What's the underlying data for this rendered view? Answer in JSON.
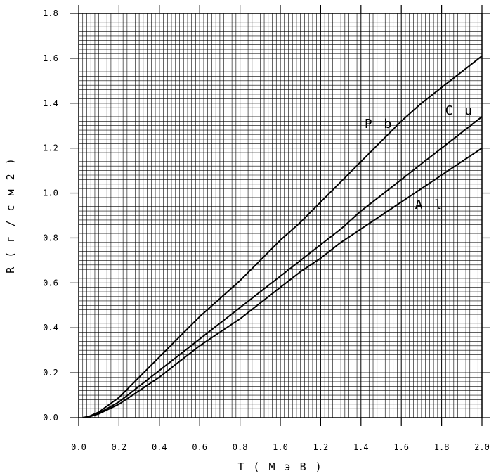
{
  "chart_data": {
    "type": "line",
    "xlabel": "T ( М э В )",
    "ylabel": "R ( г / с м 2 )",
    "xlim": [
      0.0,
      2.0
    ],
    "ylim": [
      0.0,
      1.8
    ],
    "xticks": [
      "0.0",
      "0.2",
      "0.4",
      "0.6",
      "0.8",
      "1.0",
      "1.2",
      "1.4",
      "1.6",
      "1.8",
      "2.0"
    ],
    "yticks": [
      "0.0",
      "0.2",
      "0.4",
      "0.6",
      "0.8",
      "1.0",
      "1.2",
      "1.4",
      "1.6",
      "1.8"
    ],
    "grid": true,
    "x": [
      0.02,
      0.05,
      0.1,
      0.2,
      0.3,
      0.4,
      0.5,
      0.6,
      0.7,
      0.8,
      0.9,
      1.0,
      1.1,
      1.2,
      1.3,
      1.4,
      1.5,
      1.6,
      1.7,
      1.8,
      1.9,
      2.0
    ],
    "series": [
      {
        "name": "P b",
        "label_at": [
          1.49,
          1.29
        ],
        "values": [
          0.0,
          0.005,
          0.025,
          0.09,
          0.18,
          0.27,
          0.36,
          0.45,
          0.53,
          0.61,
          0.7,
          0.79,
          0.87,
          0.96,
          1.05,
          1.14,
          1.23,
          1.32,
          1.4,
          1.47,
          1.54,
          1.61
        ]
      },
      {
        "name": "C u",
        "label_at": [
          1.89,
          1.35
        ],
        "values": [
          0.0,
          0.004,
          0.02,
          0.07,
          0.14,
          0.21,
          0.28,
          0.35,
          0.42,
          0.49,
          0.56,
          0.63,
          0.7,
          0.77,
          0.84,
          0.92,
          0.99,
          1.06,
          1.13,
          1.2,
          1.27,
          1.34
        ]
      },
      {
        "name": "A l",
        "label_at": [
          1.74,
          0.93
        ],
        "values": [
          0.0,
          0.003,
          0.017,
          0.06,
          0.12,
          0.18,
          0.25,
          0.32,
          0.38,
          0.44,
          0.51,
          0.58,
          0.65,
          0.71,
          0.78,
          0.84,
          0.9,
          0.96,
          1.02,
          1.08,
          1.14,
          1.2
        ]
      }
    ]
  }
}
